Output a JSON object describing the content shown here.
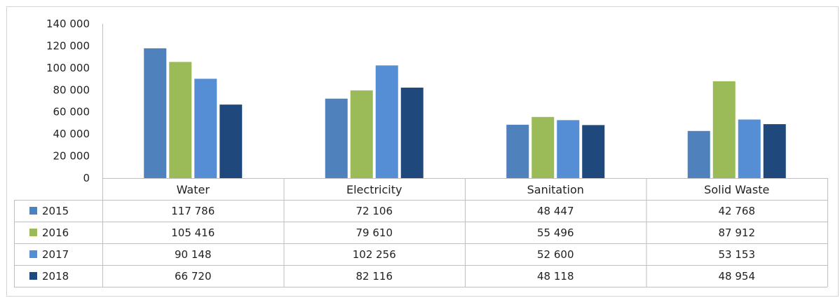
{
  "chart_data": {
    "type": "bar",
    "categories": [
      "Water",
      "Electricity",
      "Sanitation",
      "Solid Waste"
    ],
    "series": [
      {
        "name": "2015",
        "color": "#4f81bd",
        "values": [
          117786,
          72106,
          48447,
          42768
        ],
        "labels": [
          "117 786",
          "72 106",
          "48 447",
          "42 768"
        ]
      },
      {
        "name": "2016",
        "color": "#9bbb59",
        "values": [
          105416,
          79610,
          55496,
          87912
        ],
        "labels": [
          "105 416",
          "79 610",
          "55 496",
          "87 912"
        ]
      },
      {
        "name": "2017",
        "color": "#558ed5",
        "values": [
          90148,
          102256,
          52600,
          53153
        ],
        "labels": [
          "90 148",
          "102 256",
          "52 600",
          "53 153"
        ]
      },
      {
        "name": "2018",
        "color": "#1f497d",
        "values": [
          66720,
          82116,
          48118,
          48954
        ],
        "labels": [
          "66 720",
          "82 116",
          "48 118",
          "48 954"
        ]
      }
    ],
    "ylim": [
      0,
      140000
    ],
    "y_ticks": [
      0,
      20000,
      40000,
      60000,
      80000,
      100000,
      120000,
      140000
    ],
    "y_tick_labels": [
      "0",
      "20 000",
      "40 000",
      "60 000",
      "80 000",
      "100 000",
      "120 000",
      "140 000"
    ],
    "title": "",
    "xlabel": "",
    "ylabel": "",
    "legend": "data-table",
    "grid": false
  }
}
